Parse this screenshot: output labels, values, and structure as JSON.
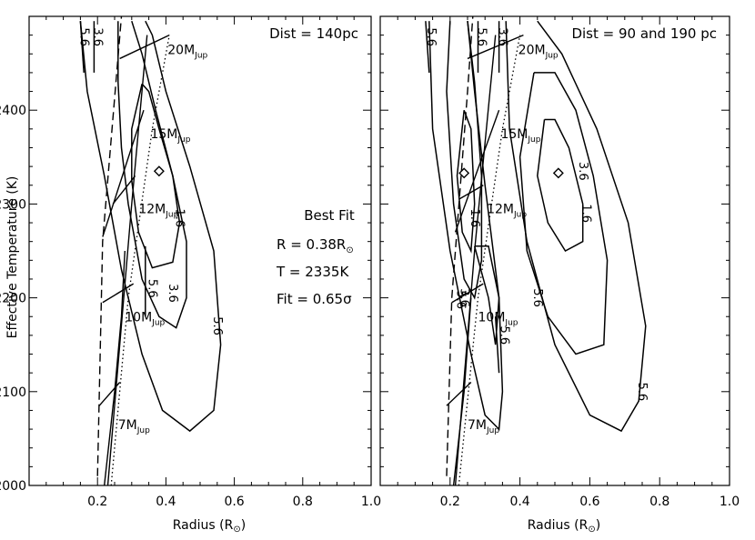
{
  "chart_data": [
    {
      "type": "contour",
      "panel_title": "Dist = 140pc",
      "xlabel": "Radius (R",
      "xlabel_symbol": "⊙",
      "ylabel": "Effective Temperature (K)",
      "xlim": [
        0.0,
        1.0
      ],
      "ylim": [
        2000,
        2500
      ],
      "xticks": [
        "0.2",
        "0.4",
        "0.6",
        "0.8",
        "1.0"
      ],
      "xtick_values": [
        0.2,
        0.4,
        0.6,
        0.8,
        1.0
      ],
      "yticks": [
        "2000",
        "2100",
        "2200",
        "2300",
        "2400"
      ],
      "ytick_values": [
        2000,
        2100,
        2200,
        2300,
        2400
      ],
      "best_fit_marker": {
        "x": 0.38,
        "y": 2335
      },
      "best_fit_box": {
        "heading": "Best Fit",
        "r_text": "R = 0.38R",
        "r_symbol": "⊙",
        "t_text": "T = 2335K",
        "fit_text": "Fit = 0.65σ"
      },
      "contours": [
        {
          "level": "1.6",
          "points": [
            [
              0.33,
              2428
            ],
            [
              0.3,
              2380
            ],
            [
              0.3,
              2325
            ],
            [
              0.32,
              2270
            ],
            [
              0.36,
              2232
            ],
            [
              0.42,
              2238
            ],
            [
              0.44,
              2280
            ],
            [
              0.42,
              2330
            ],
            [
              0.38,
              2380
            ],
            [
              0.35,
              2420
            ],
            [
              0.33,
              2428
            ]
          ],
          "label_at": [
            0.43,
            2285
          ]
        },
        {
          "level": "3.6",
          "points": [
            [
              0.26,
              2495
            ],
            [
              0.26,
              2430
            ],
            [
              0.27,
              2360
            ],
            [
              0.29,
              2300
            ],
            [
              0.33,
              2220
            ],
            [
              0.38,
              2180
            ],
            [
              0.43,
              2168
            ],
            [
              0.46,
              2200
            ],
            [
              0.46,
              2260
            ],
            [
              0.42,
              2330
            ],
            [
              0.37,
              2400
            ],
            [
              0.33,
              2460
            ],
            [
              0.3,
              2495
            ]
          ],
          "label_at": [
            0.41,
            2205
          ]
        },
        {
          "level": "5.6",
          "points": [
            [
              0.15,
              2495
            ],
            [
              0.17,
              2420
            ],
            [
              0.22,
              2330
            ],
            [
              0.27,
              2230
            ],
            [
              0.33,
              2140
            ],
            [
              0.39,
              2080
            ],
            [
              0.47,
              2058
            ],
            [
              0.54,
              2080
            ],
            [
              0.56,
              2150
            ],
            [
              0.54,
              2250
            ],
            [
              0.47,
              2340
            ],
            [
              0.4,
              2420
            ],
            [
              0.36,
              2480
            ],
            [
              0.34,
              2495
            ]
          ],
          "label_at": [
            0.54,
            2170
          ]
        },
        {
          "level": "5.6",
          "points": [
            [
              0.15,
              2495
            ],
            [
              0.16,
              2440
            ]
          ],
          "label_at": [
            0.15,
            2478
          ]
        },
        {
          "level": "3.6",
          "points": [
            [
              0.19,
              2495
            ],
            [
              0.19,
              2440
            ]
          ],
          "label_at": [
            0.19,
            2478
          ]
        },
        {
          "level": "5.6",
          "points": [
            [
              0.34,
              2255
            ],
            [
              0.34,
              2180
            ]
          ],
          "label_at": [
            0.35,
            2210
          ]
        }
      ],
      "tracks": [
        {
          "style": "dashed",
          "points": [
            [
              0.2,
              2010
            ],
            [
              0.215,
              2260
            ],
            [
              0.27,
              2500
            ]
          ]
        },
        {
          "style": "solid",
          "points": [
            [
              0.23,
              2000
            ],
            [
              0.3,
              2300
            ],
            [
              0.345,
              2480
            ]
          ]
        },
        {
          "style": "solid",
          "points": [
            [
              0.22,
              2000
            ],
            [
              0.25,
              2100
            ],
            [
              0.27,
              2180
            ],
            [
              0.28,
              2250
            ]
          ]
        },
        {
          "style": "dotted",
          "points": [
            [
              0.24,
              2000
            ],
            [
              0.29,
              2200
            ],
            [
              0.36,
              2380
            ],
            [
              0.41,
              2480
            ]
          ]
        }
      ],
      "mass_lines": [
        {
          "points": [
            [
              0.265,
              2455
            ],
            [
              0.41,
              2480
            ]
          ],
          "label": "20M",
          "sub": "Jup",
          "label_at": [
            0.405,
            2460
          ]
        },
        {
          "points": [
            [
              0.215,
              2265
            ],
            [
              0.335,
              2400
            ]
          ],
          "label": "15M",
          "sub": "Jup",
          "label_at": [
            0.355,
            2370
          ]
        },
        {
          "points": [
            [
              0.245,
              2300
            ],
            [
              0.31,
              2330
            ]
          ],
          "label": "12M",
          "sub": "Jup",
          "label_at": [
            0.32,
            2290
          ]
        },
        {
          "points": [
            [
              0.215,
              2195
            ],
            [
              0.305,
              2215
            ]
          ],
          "label": "10M",
          "sub": "Jup",
          "label_at": [
            0.28,
            2175
          ]
        },
        {
          "points": [
            [
              0.205,
              2085
            ],
            [
              0.265,
              2110
            ]
          ],
          "label": "7M",
          "sub": "Jup",
          "label_at": [
            0.26,
            2060
          ]
        }
      ]
    },
    {
      "type": "contour",
      "panel_title": "Dist = 90 and 190 pc",
      "xlabel": "Radius (R",
      "xlabel_symbol": "⊙",
      "xlim": [
        0.0,
        1.0
      ],
      "ylim": [
        2000,
        2500
      ],
      "xticks": [
        "0.2",
        "0.4",
        "0.6",
        "0.8",
        "1.0"
      ],
      "xtick_values": [
        0.2,
        0.4,
        0.6,
        0.8,
        1.0
      ],
      "best_fit_markers": [
        {
          "x": 0.24,
          "y": 2333
        },
        {
          "x": 0.51,
          "y": 2333
        }
      ],
      "contours": [
        {
          "level": "1.6",
          "points": [
            [
              0.24,
              2400
            ],
            [
              0.22,
              2330
            ],
            [
              0.235,
              2270
            ],
            [
              0.26,
              2250
            ],
            [
              0.27,
              2300
            ],
            [
              0.26,
              2380
            ],
            [
              0.24,
              2400
            ]
          ],
          "label_at": [
            0.26,
            2285
          ]
        },
        {
          "level": "1.6",
          "points": [
            [
              0.47,
              2390
            ],
            [
              0.45,
              2330
            ],
            [
              0.48,
              2280
            ],
            [
              0.53,
              2250
            ],
            [
              0.58,
              2260
            ],
            [
              0.58,
              2300
            ],
            [
              0.54,
              2360
            ],
            [
              0.5,
              2390
            ],
            [
              0.47,
              2390
            ]
          ],
          "label_at": [
            0.58,
            2290
          ]
        },
        {
          "level": "3.6",
          "points": [
            [
              0.2,
              2495
            ],
            [
              0.19,
              2420
            ],
            [
              0.21,
              2300
            ],
            [
              0.24,
              2220
            ],
            [
              0.27,
              2200
            ],
            [
              0.29,
              2240
            ],
            [
              0.29,
              2330
            ],
            [
              0.27,
              2430
            ],
            [
              0.25,
              2495
            ]
          ],
          "label_at": [
            0.23,
            2200
          ]
        },
        {
          "level": "3.6",
          "points": [
            [
              0.44,
              2440
            ],
            [
              0.4,
              2350
            ],
            [
              0.42,
              2250
            ],
            [
              0.48,
              2180
            ],
            [
              0.56,
              2140
            ],
            [
              0.64,
              2150
            ],
            [
              0.65,
              2240
            ],
            [
              0.61,
              2330
            ],
            [
              0.56,
              2400
            ],
            [
              0.5,
              2440
            ],
            [
              0.44,
              2440
            ]
          ],
          "label_at": [
            0.57,
            2335
          ]
        },
        {
          "level": "5.6",
          "points": [
            [
              0.14,
              2495
            ],
            [
              0.15,
              2380
            ],
            [
              0.2,
              2250
            ],
            [
              0.26,
              2140
            ],
            [
              0.3,
              2075
            ],
            [
              0.34,
              2060
            ],
            [
              0.35,
              2100
            ],
            [
              0.34,
              2200
            ],
            [
              0.3,
              2320
            ],
            [
              0.27,
              2420
            ],
            [
              0.25,
              2495
            ]
          ],
          "label_at": [
            0.22,
            2198
          ]
        },
        {
          "level": "5.6",
          "points": [
            [
              0.36,
              2495
            ],
            [
              0.37,
              2380
            ],
            [
              0.42,
              2260
            ],
            [
              0.5,
              2150
            ],
            [
              0.6,
              2075
            ],
            [
              0.69,
              2058
            ],
            [
              0.74,
              2090
            ],
            [
              0.76,
              2170
            ],
            [
              0.71,
              2280
            ],
            [
              0.62,
              2380
            ],
            [
              0.52,
              2460
            ],
            [
              0.45,
              2495
            ]
          ],
          "label_at": [
            0.74,
            2100
          ]
        },
        {
          "level": "5.6",
          "points": [
            [
              0.27,
              2255
            ],
            [
              0.31,
              2200
            ],
            [
              0.33,
              2150
            ],
            [
              0.34,
              2200
            ],
            [
              0.31,
              2255
            ],
            [
              0.27,
              2255
            ]
          ],
          "label_at": [
            0.44,
            2200
          ]
        },
        {
          "level": "5.6",
          "points": [
            [
              0.33,
              2180
            ],
            [
              0.34,
              2120
            ]
          ],
          "label_at": [
            0.345,
            2160
          ]
        },
        {
          "level": "5.6",
          "points": [
            [
              0.13,
              2495
            ],
            [
              0.14,
              2440
            ]
          ],
          "label_at": [
            0.135,
            2478
          ]
        },
        {
          "level": "3.6",
          "points": [
            [
              0.34,
              2495
            ],
            [
              0.34,
              2440
            ]
          ],
          "label_at": [
            0.34,
            2478
          ]
        },
        {
          "level": "5.6",
          "points": [
            [
              0.28,
              2495
            ],
            [
              0.28,
              2440
            ]
          ],
          "label_at": [
            0.28,
            2478
          ]
        }
      ],
      "tracks": [
        {
          "style": "dashed",
          "points": [
            [
              0.19,
              2010
            ],
            [
              0.205,
              2200
            ],
            [
              0.25,
              2420
            ],
            [
              0.265,
              2500
            ]
          ]
        },
        {
          "style": "solid",
          "points": [
            [
              0.215,
              2000
            ],
            [
              0.27,
              2250
            ],
            [
              0.33,
              2480
            ]
          ]
        },
        {
          "style": "solid",
          "points": [
            [
              0.21,
              2000
            ],
            [
              0.24,
              2100
            ],
            [
              0.26,
              2200
            ]
          ]
        },
        {
          "style": "dotted",
          "points": [
            [
              0.225,
              2000
            ],
            [
              0.28,
              2200
            ],
            [
              0.35,
              2380
            ],
            [
              0.4,
              2480
            ]
          ]
        }
      ],
      "mass_lines": [
        {
          "points": [
            [
              0.25,
              2455
            ],
            [
              0.41,
              2480
            ]
          ],
          "label": "20M",
          "sub": "Jup",
          "label_at": [
            0.395,
            2460
          ]
        },
        {
          "points": [
            [
              0.215,
              2270
            ],
            [
              0.34,
              2400
            ]
          ],
          "label": "15M",
          "sub": "Jup",
          "label_at": [
            0.345,
            2370
          ]
        },
        {
          "points": [
            [
              0.225,
              2305
            ],
            [
              0.295,
              2320
            ]
          ],
          "label": "12M",
          "sub": "Jup",
          "label_at": [
            0.305,
            2290
          ]
        },
        {
          "points": [
            [
              0.205,
              2195
            ],
            [
              0.295,
              2215
            ]
          ],
          "label": "10M",
          "sub": "Jup",
          "label_at": [
            0.28,
            2175
          ]
        },
        {
          "points": [
            [
              0.19,
              2085
            ],
            [
              0.26,
              2110
            ]
          ],
          "label": "7M",
          "sub": "Jup",
          "label_at": [
            0.25,
            2060
          ]
        }
      ]
    }
  ]
}
